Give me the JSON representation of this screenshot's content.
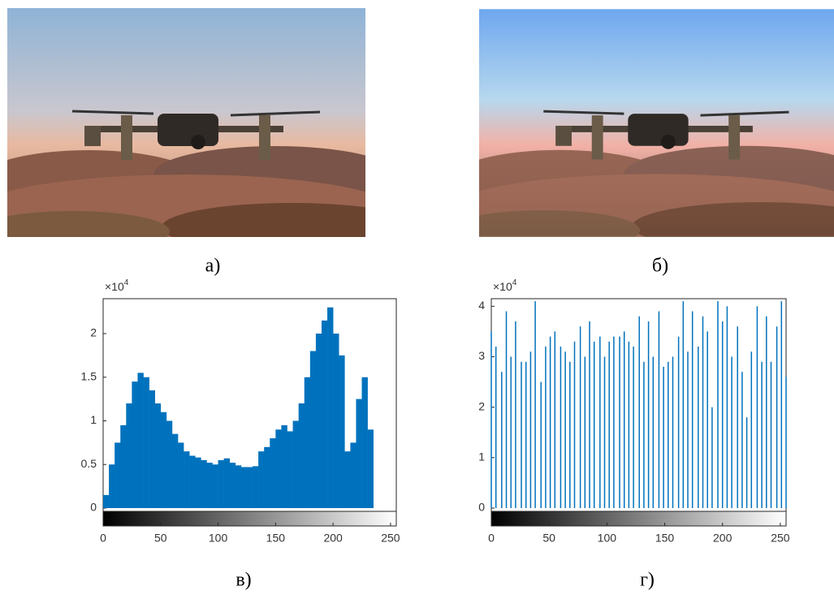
{
  "captions": [
    "а)",
    "б)",
    "в)",
    "г)"
  ],
  "chart_data": [
    {
      "type": "histogram",
      "color": "#0072bd",
      "yscale": {
        "base": "×10",
        "exponent": "4"
      },
      "bins": [
        0,
        5,
        10,
        15,
        20,
        25,
        30,
        35,
        40,
        45,
        50,
        55,
        60,
        65,
        70,
        75,
        80,
        85,
        90,
        95,
        100,
        105,
        110,
        115,
        120,
        125,
        130,
        135,
        140,
        145,
        150,
        155,
        160,
        165,
        170,
        175,
        180,
        185,
        190,
        195,
        200,
        205,
        210,
        215,
        220,
        225,
        230,
        235
      ],
      "values": [
        0.15,
        0.5,
        0.75,
        0.95,
        1.2,
        1.45,
        1.55,
        1.5,
        1.35,
        1.2,
        1.1,
        1.0,
        0.85,
        0.75,
        0.65,
        0.6,
        0.58,
        0.55,
        0.52,
        0.5,
        0.55,
        0.57,
        0.52,
        0.49,
        0.47,
        0.47,
        0.48,
        0.65,
        0.7,
        0.8,
        0.9,
        0.95,
        0.88,
        1.0,
        1.2,
        1.5,
        1.8,
        2.0,
        2.15,
        2.3,
        2.0,
        1.75,
        0.65,
        0.75,
        1.25,
        1.5,
        0.9
      ],
      "xlim": [
        0,
        255
      ],
      "xticks": [
        0,
        50,
        100,
        150,
        200,
        250
      ],
      "ylim": [
        0,
        2.4
      ],
      "yticks": [
        0,
        0.5,
        1,
        1.5,
        2
      ]
    },
    {
      "type": "stem",
      "color": "#0072bd",
      "yscale": {
        "base": "×10",
        "exponent": "4"
      },
      "x": [
        0,
        4,
        9,
        13,
        17,
        21,
        26,
        30,
        34,
        38,
        43,
        47,
        51,
        55,
        60,
        64,
        68,
        72,
        77,
        81,
        85,
        89,
        94,
        98,
        102,
        106,
        111,
        115,
        119,
        123,
        128,
        132,
        136,
        140,
        145,
        149,
        153,
        157,
        162,
        166,
        170,
        174,
        179,
        183,
        187,
        191,
        196,
        200,
        204,
        208,
        213,
        217,
        221,
        225,
        230,
        234,
        238,
        242,
        247,
        251,
        255
      ],
      "values": [
        3.5,
        3.2,
        2.7,
        3.9,
        3.0,
        3.7,
        2.9,
        2.9,
        3.1,
        4.1,
        2.5,
        3.2,
        3.4,
        3.5,
        3.2,
        3.1,
        2.9,
        3.3,
        3.6,
        3.0,
        3.7,
        3.3,
        3.4,
        3.0,
        3.3,
        3.4,
        3.4,
        3.5,
        3.3,
        3.2,
        3.8,
        2.9,
        3.7,
        3.0,
        3.9,
        2.8,
        2.9,
        3.0,
        3.4,
        4.1,
        3.1,
        3.9,
        3.2,
        3.8,
        3.5,
        2.0,
        4.1,
        3.7,
        4.0,
        3.0,
        3.6,
        2.7,
        1.8,
        3.1,
        4.0,
        2.9,
        3.8,
        2.9,
        3.6,
        4.1,
        2.6
      ],
      "xlim": [
        0,
        255
      ],
      "xticks": [
        0,
        50,
        100,
        150,
        200,
        250
      ],
      "ylim": [
        0,
        4.15
      ],
      "yticks": [
        0,
        1,
        2,
        3,
        4
      ]
    }
  ]
}
